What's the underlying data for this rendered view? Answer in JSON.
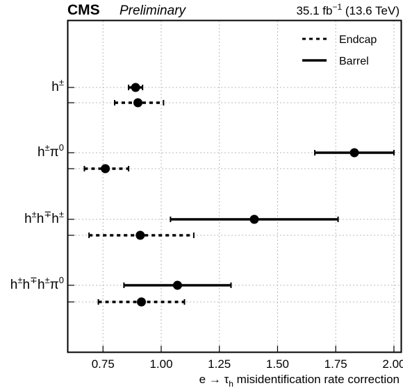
{
  "header": {
    "experiment": "CMS",
    "status": "Preliminary",
    "lumi_prefix": "35.1 fb",
    "lumi_exp": "−1",
    "lumi_suffix": " (13.6 TeV)"
  },
  "chart_data": {
    "type": "scatter",
    "xlabel": {
      "pre": "e → τ",
      "sub": "h",
      "post": " misidentification rate correction"
    },
    "xlim": [
      0.6,
      2.03
    ],
    "xticks": [
      0.75,
      1.0,
      1.25,
      1.5,
      1.75,
      2.0
    ],
    "xtick_labels": [
      "0.75",
      "1.00",
      "1.25",
      "1.50",
      "1.75",
      "2.00"
    ],
    "grid": true,
    "legend_position": "top-right",
    "series": [
      {
        "name": "Endcap",
        "style": "dotted"
      },
      {
        "name": "Barrel",
        "style": "solid"
      }
    ],
    "categories": [
      {
        "base": "h",
        "sups": [
          "±"
        ],
        "barrel": {
          "value": 0.89,
          "low": 0.86,
          "high": 0.92
        },
        "endcap": {
          "value": 0.9,
          "low": 0.8,
          "high": 1.01
        }
      },
      {
        "base": "h",
        "sups": [
          "±",
          "π",
          "0"
        ],
        "barrel": {
          "value": 1.83,
          "low": 1.66,
          "high": 2.0
        },
        "endcap": {
          "value": 0.76,
          "low": 0.67,
          "high": 0.86
        }
      },
      {
        "base": "h",
        "sups": [
          "±",
          "h",
          "∓",
          "h",
          "±"
        ],
        "barrel": {
          "value": 1.4,
          "low": 1.04,
          "high": 1.76
        },
        "endcap": {
          "value": 0.91,
          "low": 0.69,
          "high": 1.14
        }
      },
      {
        "base": "h",
        "sups": [
          "±",
          "h",
          "∓",
          "h",
          "±",
          "π",
          "0"
        ],
        "barrel": {
          "value": 1.07,
          "low": 0.84,
          "high": 1.3
        },
        "endcap": {
          "value": 0.915,
          "low": 0.73,
          "high": 1.1
        }
      }
    ]
  }
}
